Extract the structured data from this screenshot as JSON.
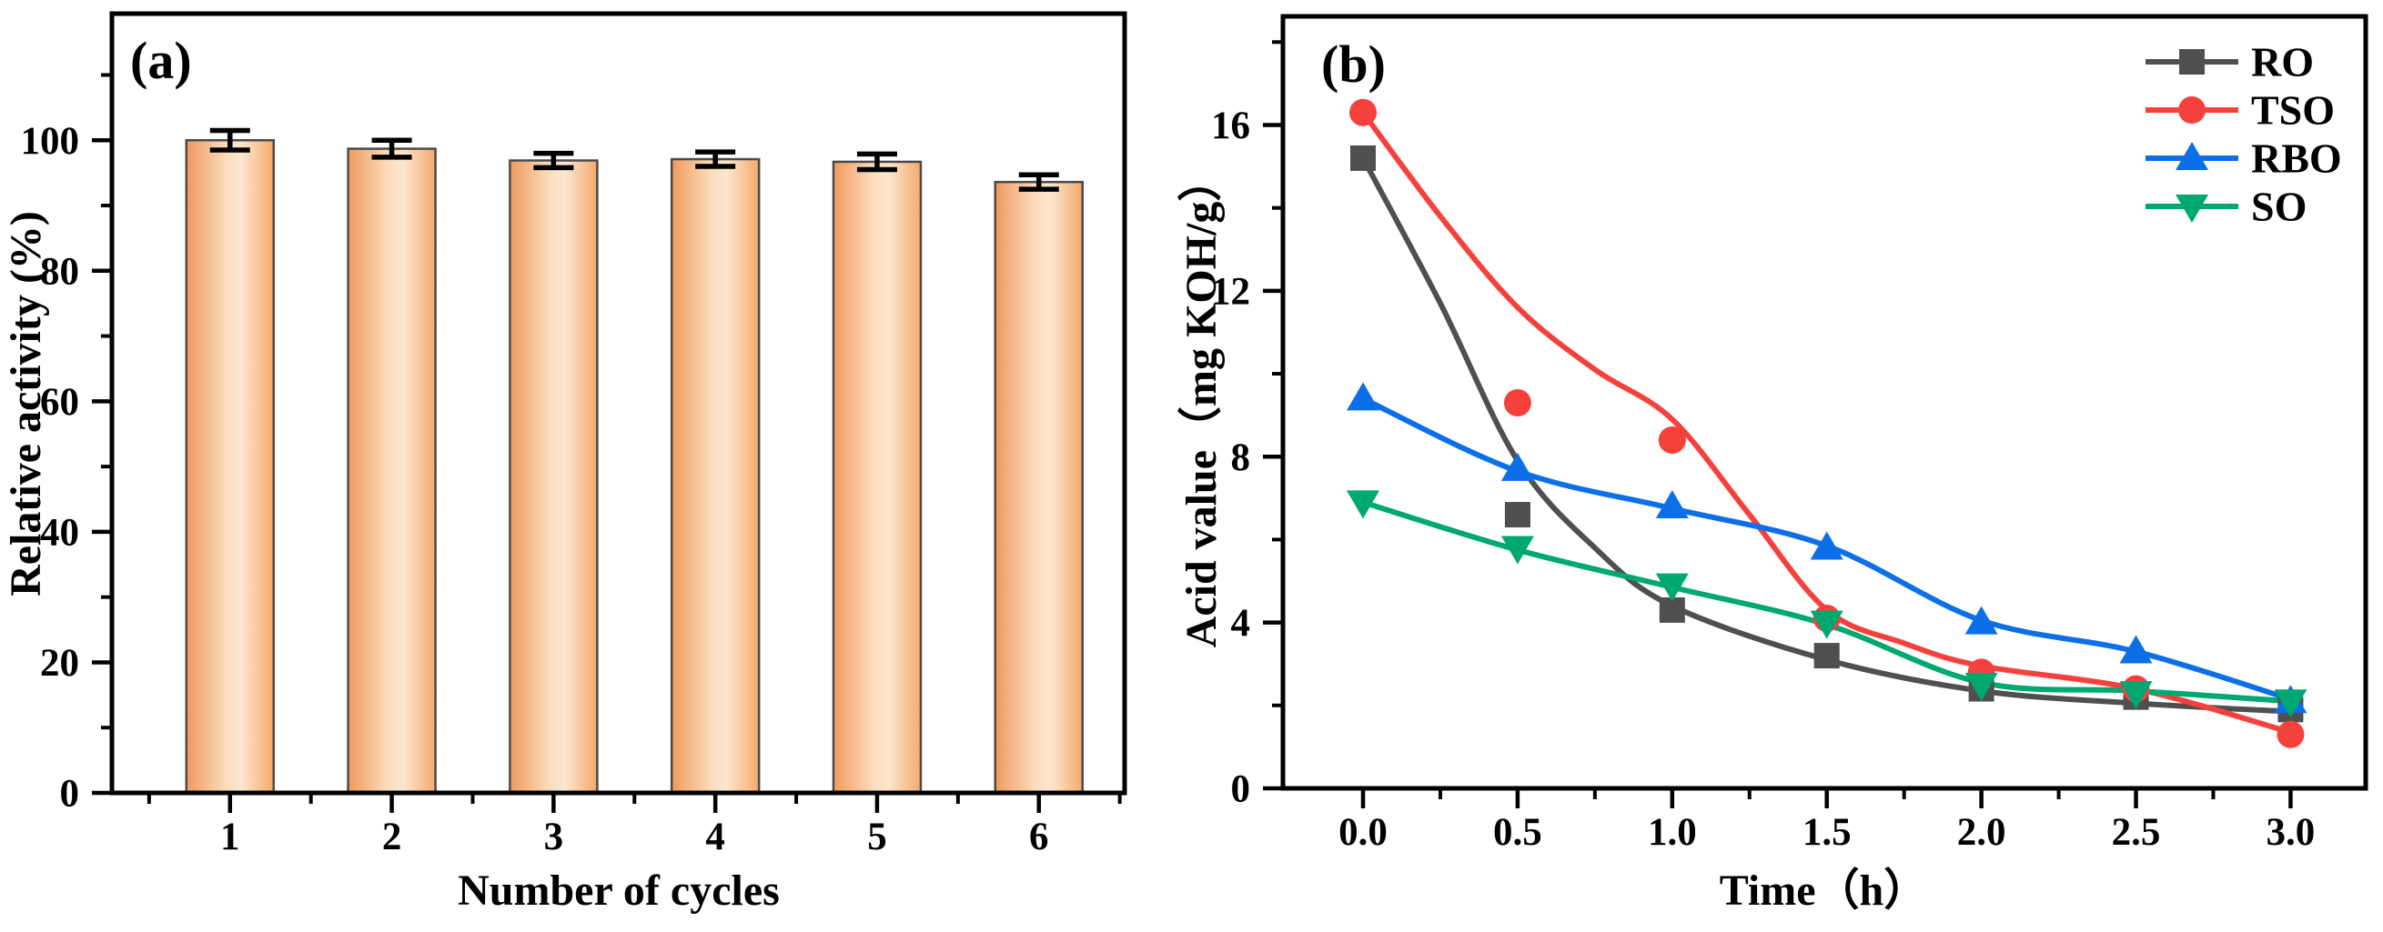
{
  "figure": {
    "background": "#ffffff",
    "text_color": "#000000"
  },
  "chart_data": [
    {
      "type": "bar",
      "panel_label": "(a)",
      "xlabel": "Number of cycles",
      "ylabel": "Relative activity (%)",
      "categories": [
        "1",
        "2",
        "3",
        "4",
        "5",
        "6"
      ],
      "values": [
        100,
        98.7,
        96.9,
        97.1,
        96.7,
        93.6
      ],
      "errors": [
        1.5,
        1.3,
        1.1,
        1.1,
        1.2,
        1.1
      ],
      "ylim": [
        0,
        119.4
      ],
      "yticks_major": [
        0,
        20,
        40,
        60,
        80,
        100
      ],
      "yticks_minor": [
        10,
        30,
        50,
        70,
        90,
        110
      ],
      "grid": false,
      "bar_fill_gradient": [
        "#ef9a5c",
        "#fbdcbc",
        "#fde7d0",
        "#f4a96b"
      ],
      "bar_border_color": "#4a4a4a",
      "error_bar_color": "#000000"
    },
    {
      "type": "line",
      "panel_label": "(b)",
      "xlabel": "Time（h）",
      "ylabel": "Acid value（mg KOH/g）",
      "x": [
        0,
        0.5,
        1.0,
        1.5,
        2.0,
        2.5,
        3.0
      ],
      "xtick_labels": [
        "0.0",
        "0.5",
        "1.0",
        "1.5",
        "2.0",
        "2.5",
        "3.0"
      ],
      "xticks_minor": [
        0.25,
        0.75,
        1.25,
        1.75,
        2.25,
        2.75
      ],
      "yticks_major": [
        0,
        4,
        8,
        12,
        16
      ],
      "yticks_minor": [
        2,
        6,
        10,
        14,
        18
      ],
      "xlim": [
        -0.259,
        3.243
      ],
      "ylim": [
        0,
        18.62
      ],
      "grid": false,
      "legend_position": "top-right",
      "series": [
        {
          "name": "RO",
          "color": "#4f4f4f",
          "marker": "square",
          "values": [
            15.2,
            6.6,
            4.3,
            3.2,
            2.4,
            2.2,
            1.9
          ],
          "line_fit": [
            [
              0,
              15.2
            ],
            [
              0.25,
              11.7
            ],
            [
              0.5,
              7.9
            ],
            [
              0.75,
              5.8
            ],
            [
              1.0,
              4.4
            ],
            [
              1.5,
              3.1
            ],
            [
              2.0,
              2.35
            ],
            [
              2.5,
              2.05
            ],
            [
              3.0,
              1.85
            ]
          ]
        },
        {
          "name": "TSO",
          "color": "#f5413c",
          "marker": "circle",
          "values": [
            16.3,
            9.3,
            8.4,
            4.1,
            2.8,
            2.4,
            1.3
          ],
          "line_fit": [
            [
              0,
              16.3
            ],
            [
              0.25,
              13.8
            ],
            [
              0.5,
              11.6
            ],
            [
              0.75,
              10.1
            ],
            [
              1.0,
              8.9
            ],
            [
              1.25,
              6.6
            ],
            [
              1.5,
              4.3
            ],
            [
              1.75,
              3.5
            ],
            [
              2.0,
              2.95
            ],
            [
              2.5,
              2.4
            ],
            [
              3.0,
              1.35
            ]
          ]
        },
        {
          "name": "RBO",
          "color": "#0d6fe8",
          "marker": "triangle-up",
          "values": [
            9.4,
            7.7,
            6.8,
            5.8,
            4.0,
            3.3,
            2.1
          ],
          "line_fit": [
            [
              0,
              9.4
            ],
            [
              0.5,
              7.65
            ],
            [
              1.0,
              6.75
            ],
            [
              1.5,
              5.85
            ],
            [
              2.0,
              4.05
            ],
            [
              2.5,
              3.3
            ],
            [
              3.0,
              2.15
            ]
          ]
        },
        {
          "name": "SO",
          "color": "#00a871",
          "marker": "triangle-down",
          "values": [
            6.9,
            5.8,
            4.9,
            4.0,
            2.5,
            2.3,
            2.1
          ],
          "line_fit": [
            [
              0,
              6.9
            ],
            [
              0.5,
              5.75
            ],
            [
              1.0,
              4.85
            ],
            [
              1.5,
              3.95
            ],
            [
              2.0,
              2.55
            ],
            [
              2.5,
              2.35
            ],
            [
              3.0,
              2.1
            ]
          ]
        }
      ]
    }
  ]
}
